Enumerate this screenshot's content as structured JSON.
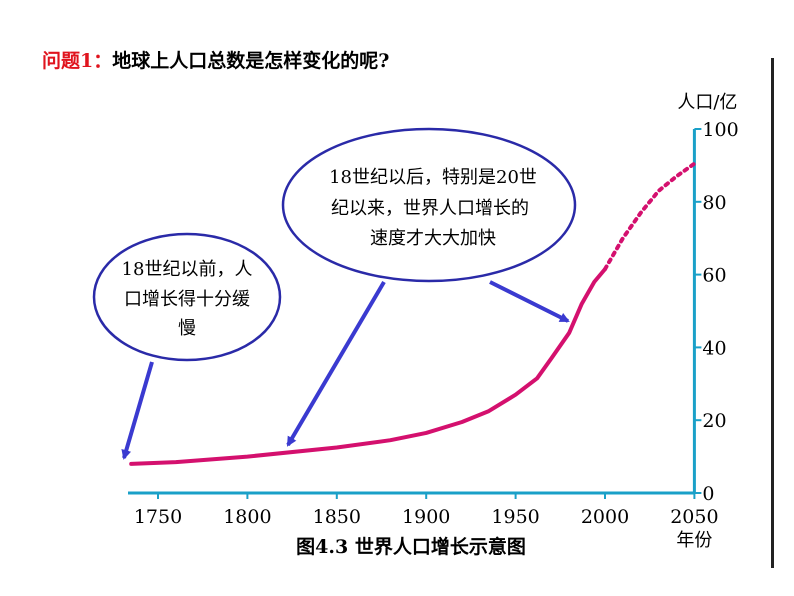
{
  "question": {
    "label": "问题1：",
    "text": "地球上人口总数是怎样变化的呢?"
  },
  "caption": "图4.3 世界人口增长示意图",
  "bubbles": {
    "left": [
      "18世纪以前，人",
      "口增长得十分缓",
      "慢"
    ],
    "top": [
      "18世纪以后，特别是20世",
      "纪以来，世界人口增长的",
      "速度才大大加快"
    ]
  },
  "colors": {
    "curve": "#d4106e",
    "axis": "#1aa0c8",
    "bubble_border": "#2a2aa8",
    "arrow": "#3a3ad0",
    "question_label": "#e0141e"
  },
  "chart_data": {
    "type": "line",
    "title": "图4.3 世界人口增长示意图",
    "ylabel": "人口/亿",
    "xlabel": "年份",
    "xlim": [
      1735,
      2050
    ],
    "ylim": [
      0,
      100
    ],
    "x_ticks": [
      "1750",
      "1800",
      "1850",
      "1900",
      "1950",
      "2000",
      "2050"
    ],
    "y_ticks": [
      "0",
      "20",
      "40",
      "60",
      "80",
      "100"
    ],
    "series": [
      {
        "style": "solid",
        "points": [
          [
            1735,
            8
          ],
          [
            1760,
            8.5
          ],
          [
            1800,
            10
          ],
          [
            1850,
            12.5
          ],
          [
            1880,
            14.5
          ],
          [
            1900,
            16.5
          ],
          [
            1920,
            19.5
          ],
          [
            1935,
            22.5
          ],
          [
            1950,
            27
          ],
          [
            1962,
            31.5
          ],
          [
            1970,
            37
          ],
          [
            1980,
            44
          ],
          [
            1987,
            52
          ],
          [
            1994,
            58
          ],
          [
            2000,
            61.5
          ]
        ]
      },
      {
        "style": "dotted",
        "points": [
          [
            2000,
            61.5
          ],
          [
            2010,
            70
          ],
          [
            2020,
            77
          ],
          [
            2030,
            83
          ],
          [
            2040,
            87
          ],
          [
            2050,
            90.5
          ]
        ]
      }
    ]
  }
}
